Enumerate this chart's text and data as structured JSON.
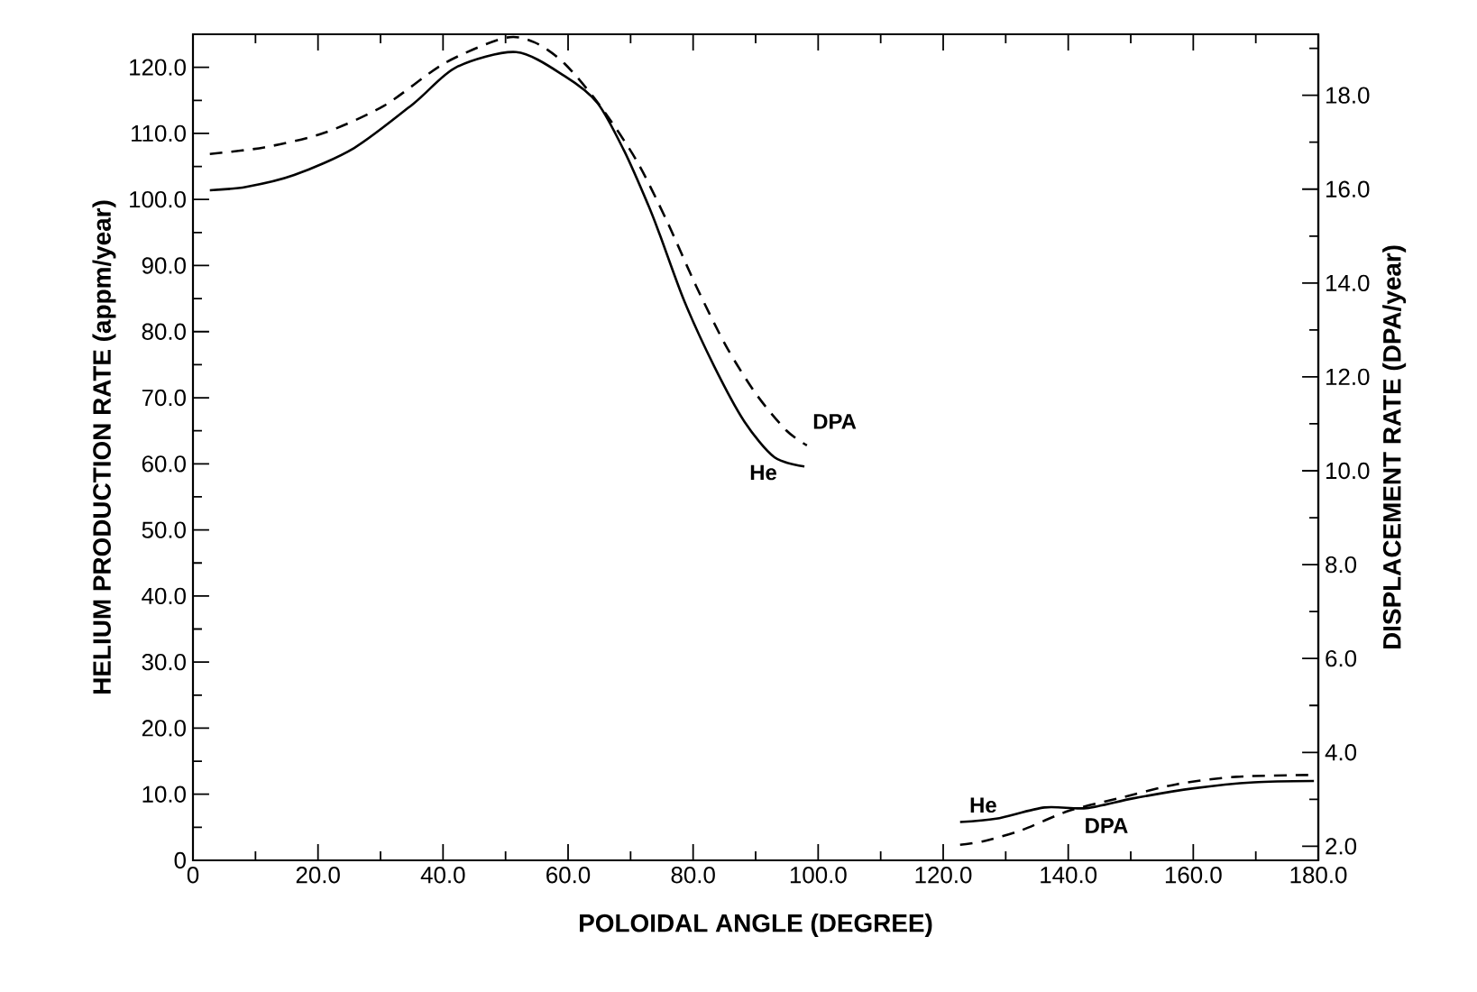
{
  "chart_data": {
    "type": "line",
    "xlabel": "POLOIDAL ANGLE (DEGREE)",
    "ylabel": "HELIUM PRODUCTION RATE (appm/year)",
    "y2label": "DISPLACEMENT RATE (DPA/year)",
    "xlim": [
      0,
      180
    ],
    "ylim": [
      0,
      125
    ],
    "y2lim": [
      1.7,
      19.3
    ],
    "xticks": [
      {
        "value": 0,
        "label": "0"
      },
      {
        "value": 20,
        "label": "20.0"
      },
      {
        "value": 40,
        "label": "40.0"
      },
      {
        "value": 60,
        "label": "60.0"
      },
      {
        "value": 80,
        "label": "80.0"
      },
      {
        "value": 100,
        "label": "100.0"
      },
      {
        "value": 120,
        "label": "120.0"
      },
      {
        "value": 140,
        "label": "140.0"
      },
      {
        "value": 160,
        "label": "160.0"
      },
      {
        "value": 180,
        "label": "180.0"
      },
      {
        "value": 10,
        "label": null
      },
      {
        "value": 30,
        "label": null
      },
      {
        "value": 50,
        "label": null
      },
      {
        "value": 70,
        "label": null
      },
      {
        "value": 90,
        "label": null
      },
      {
        "value": 110,
        "label": null
      },
      {
        "value": 130,
        "label": null
      },
      {
        "value": 150,
        "label": null
      },
      {
        "value": 170,
        "label": null
      }
    ],
    "yticks": [
      {
        "value": 0,
        "label": "0"
      },
      {
        "value": 10,
        "label": "10.0"
      },
      {
        "value": 20,
        "label": "20.0"
      },
      {
        "value": 30,
        "label": "30.0"
      },
      {
        "value": 40,
        "label": "40.0"
      },
      {
        "value": 50,
        "label": "50.0"
      },
      {
        "value": 60,
        "label": "60.0"
      },
      {
        "value": 70,
        "label": "70.0"
      },
      {
        "value": 80,
        "label": "80.0"
      },
      {
        "value": 90,
        "label": "90.0"
      },
      {
        "value": 100,
        "label": "100.0"
      },
      {
        "value": 110,
        "label": "110.0"
      },
      {
        "value": 120,
        "label": "120.0"
      },
      {
        "value": 5,
        "label": null
      },
      {
        "value": 15,
        "label": null
      },
      {
        "value": 25,
        "label": null
      },
      {
        "value": 35,
        "label": null
      },
      {
        "value": 45,
        "label": null
      },
      {
        "value": 55,
        "label": null
      },
      {
        "value": 65,
        "label": null
      },
      {
        "value": 75,
        "label": null
      },
      {
        "value": 85,
        "label": null
      },
      {
        "value": 95,
        "label": null
      },
      {
        "value": 105,
        "label": null
      },
      {
        "value": 115,
        "label": null
      }
    ],
    "y2ticks": [
      {
        "value": 2,
        "label": "2.0"
      },
      {
        "value": 4,
        "label": "4.0"
      },
      {
        "value": 6,
        "label": "6.0"
      },
      {
        "value": 8,
        "label": "8.0"
      },
      {
        "value": 10,
        "label": "10.0"
      },
      {
        "value": 12,
        "label": "12.0"
      },
      {
        "value": 14,
        "label": "14.0"
      },
      {
        "value": 16,
        "label": "16.0"
      },
      {
        "value": 18,
        "label": "18.0"
      },
      {
        "value": 3,
        "label": null
      },
      {
        "value": 5,
        "label": null
      },
      {
        "value": 7,
        "label": null
      },
      {
        "value": 9,
        "label": null
      },
      {
        "value": 11,
        "label": null
      },
      {
        "value": 13,
        "label": null
      },
      {
        "value": 15,
        "label": null
      },
      {
        "value": 17,
        "label": null
      },
      {
        "value": 19,
        "label": null
      }
    ],
    "series": [
      {
        "name": "He",
        "color": "#000000",
        "line_style": "solid",
        "x": [
          2.7,
          8.5,
          16.2,
          25.8,
          35.4,
          42.1,
          51.7,
          59.4,
          64.7,
          69,
          72.8,
          74.7,
          78.6,
          83.4,
          88.2,
          93,
          97.8,
          110,
          122.7,
          128.5,
          136.2,
          142.9,
          150.5,
          160.1,
          169.7,
          179.3
        ],
        "values": [
          101.4,
          101.9,
          103.7,
          107.8,
          114.6,
          120,
          122.3,
          118.7,
          114.6,
          107.3,
          99.2,
          94.6,
          84.6,
          74.7,
          66.4,
          61.0,
          59.6,
          null,
          5.8,
          6.3,
          8.0,
          7.9,
          9.4,
          10.9,
          11.8,
          12.0
        ]
      },
      {
        "name": "DPA",
        "color": "#000000",
        "line_style": "dashed",
        "axis": "y2",
        "x": [
          2.7,
          11.4,
          21.0,
          30.6,
          40.2,
          49.8,
          54.6,
          59.4,
          65.1,
          70.9,
          75.7,
          80.5,
          85.3,
          90.1,
          94.9,
          98.2,
          110,
          122.7,
          126.5,
          132.3,
          140,
          147.7,
          157.3,
          166.9,
          179.3
        ],
        "values": [
          16.75,
          16.89,
          17.2,
          17.78,
          18.68,
          19.22,
          19.13,
          18.68,
          17.78,
          16.62,
          15.35,
          13.93,
          12.65,
          11.63,
          10.86,
          10.54,
          null,
          2.03,
          2.11,
          2.33,
          2.75,
          3.01,
          3.32,
          3.48,
          3.52
        ]
      }
    ]
  }
}
